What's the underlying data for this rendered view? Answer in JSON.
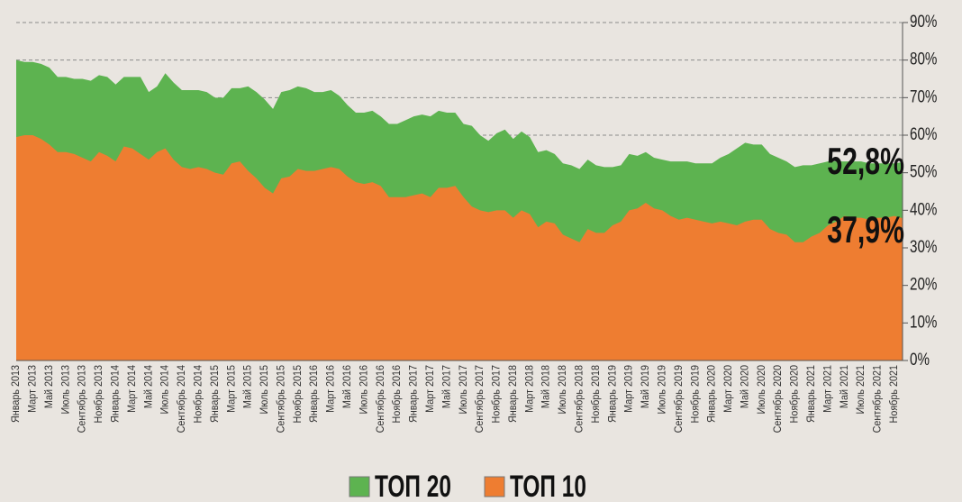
{
  "chart_data": {
    "type": "area",
    "categories": [
      "Январь 2013",
      null,
      "Март 2013",
      null,
      "Май 2013",
      null,
      "Июль 2013",
      null,
      "Сентябрь 2013",
      null,
      "Ноябрь 2013",
      null,
      "Январь 2014",
      null,
      "Март 2014",
      null,
      "Май 2014",
      null,
      "Июль 2014",
      null,
      "Сентябрь 2014",
      null,
      "Ноябрь 2014",
      null,
      "Январь 2015",
      null,
      "Март 2015",
      null,
      "Май 2015",
      null,
      "Июль 2015",
      null,
      "Сентябрь 2015",
      null,
      "Ноябрь 2015",
      null,
      "Январь 2016",
      null,
      "Март 2016",
      null,
      "Май 2016",
      null,
      "Июль 2016",
      null,
      "Сентябрь 2016",
      null,
      "Ноябрь 2016",
      null,
      "Январь 2017",
      null,
      "Март 2017",
      null,
      "Май 2017",
      null,
      "Июль 2017",
      null,
      "Сентябрь 2017",
      null,
      "Ноябрь 2017",
      null,
      "Январь 2018",
      null,
      "Март 2018",
      null,
      "Май 2018",
      null,
      "Июль 2018",
      null,
      "Сентябрь 2018",
      null,
      "Ноябрь 2018",
      null,
      "Январь 2019",
      null,
      "Март 2019",
      null,
      "Май 2019",
      null,
      "Июль 2019",
      null,
      "Сентябрь 2019",
      null,
      "Ноябрь 2019",
      null,
      "Январь 2020",
      null,
      "Март 2020",
      null,
      "Май 2020",
      null,
      "Июль 2020",
      null,
      "Сентябрь 2020",
      null,
      "Ноябрь 2020",
      null,
      "Январь 2021",
      null,
      "Март 2021",
      null,
      "Май 2021",
      null,
      "Июль 2021",
      null,
      "Сентябрь 2021",
      null,
      "Ноябрь 2021",
      null
    ],
    "series": [
      {
        "name": "ТОП 20",
        "color": "#5db350",
        "values": [
          80,
          79.5,
          79.5,
          79,
          78,
          75.5,
          75.5,
          75,
          75,
          74.5,
          76,
          75.5,
          73.5,
          75.5,
          75.5,
          75.5,
          71.5,
          73,
          76.5,
          74,
          72,
          72,
          72,
          71.5,
          70,
          70,
          72.5,
          72.5,
          73,
          71.5,
          69.5,
          67,
          71.5,
          72,
          73,
          72.5,
          71.5,
          71.5,
          72,
          70.5,
          68,
          66,
          66,
          66.5,
          65,
          63,
          63,
          64,
          65,
          65.5,
          65,
          66.5,
          66,
          66,
          63,
          62.5,
          60,
          58.5,
          60.5,
          61.5,
          59,
          61,
          59.5,
          55.5,
          56,
          55,
          52.5,
          52,
          51,
          53.5,
          52,
          51.5,
          51.5,
          52,
          55,
          54.5,
          55.5,
          54,
          53.5,
          53,
          53,
          53,
          52.5,
          52.5,
          52.5,
          54,
          55,
          56.5,
          58,
          57.5,
          57.5,
          55,
          54,
          53,
          51.5,
          52,
          52,
          52.5,
          53,
          53,
          53,
          53,
          53,
          52.5,
          52.5,
          52.5,
          52.5,
          52.8
        ]
      },
      {
        "name": "ТОП 10",
        "color": "#ee7d31",
        "values": [
          59.5,
          60,
          60,
          59,
          57.5,
          55.5,
          55.5,
          55,
          54,
          53,
          55.5,
          54.5,
          53,
          57,
          56.5,
          55,
          53.5,
          55.5,
          56.5,
          53.5,
          51.5,
          51,
          51.5,
          51,
          50,
          49.5,
          52.5,
          53,
          50.5,
          48.5,
          46,
          44.5,
          48.5,
          49,
          51,
          50.5,
          50.5,
          51,
          51.5,
          51,
          49,
          47.5,
          47,
          47.5,
          46.5,
          43.5,
          43.5,
          43.5,
          44,
          44.5,
          43.5,
          46,
          46,
          46.5,
          43.5,
          41,
          40,
          39.5,
          40,
          40,
          38,
          40,
          39,
          35.5,
          37,
          36.5,
          33.5,
          32.5,
          31.5,
          35,
          34,
          34,
          36,
          37,
          40,
          40.5,
          42,
          40.5,
          40,
          38.5,
          37.5,
          38,
          37.5,
          37,
          36.5,
          37,
          36.5,
          36,
          37,
          37.5,
          37.5,
          35,
          34,
          33.5,
          31.5,
          31.5,
          33,
          34,
          36,
          37,
          38.5,
          38,
          38,
          37.5,
          38,
          38,
          38.5,
          37.9
        ]
      }
    ],
    "annotations": [
      "52,8%",
      "37,9%"
    ],
    "ylim": [
      0,
      90
    ],
    "yticks": [
      {
        "value": 0,
        "label": "0%"
      },
      {
        "value": 10,
        "label": "10%"
      },
      {
        "value": 20,
        "label": "20%"
      },
      {
        "value": 30,
        "label": "30%"
      },
      {
        "value": 40,
        "label": "40%"
      },
      {
        "value": 50,
        "label": "50%"
      },
      {
        "value": 60,
        "label": "60%"
      },
      {
        "value": 70,
        "label": "70%"
      },
      {
        "value": 80,
        "label": "80%"
      },
      {
        "value": 90,
        "label": "90%"
      }
    ],
    "grid": true
  }
}
